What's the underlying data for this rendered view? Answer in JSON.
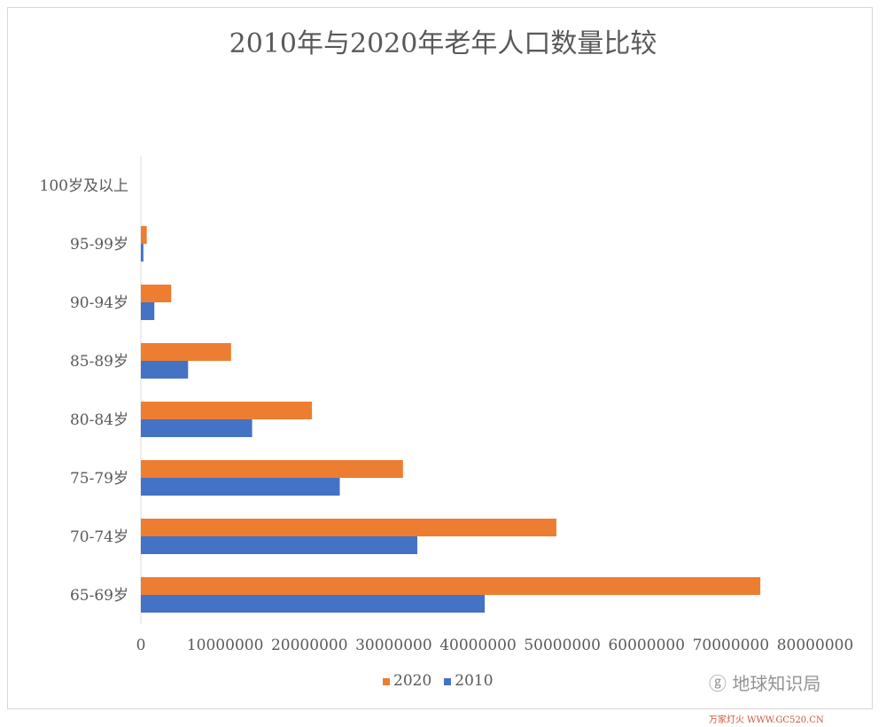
{
  "chart_data": {
    "type": "bar",
    "orientation": "horizontal",
    "title": "2010年与2020年老年人口数量比较",
    "categories": [
      "65-69岁",
      "70-74岁",
      "75-79岁",
      "80-84岁",
      "85-89岁",
      "90-94岁",
      "95-99岁",
      "100岁及以上"
    ],
    "series": [
      {
        "name": "2020",
        "color": "#ed7d31",
        "values": [
          73500000,
          49300000,
          31100000,
          20300000,
          10700000,
          3600000,
          700000,
          0
        ]
      },
      {
        "name": "2010",
        "color": "#4472c4",
        "values": [
          40800000,
          32800000,
          23600000,
          13200000,
          5600000,
          1600000,
          300000,
          0
        ]
      }
    ],
    "xlim": [
      0,
      80000000
    ],
    "xticks": [
      "0",
      "10000000",
      "20000000",
      "30000000",
      "40000000",
      "50000000",
      "60000000",
      "70000000",
      "80000000"
    ],
    "grid": false,
    "legend": "bottom",
    "legend_order": [
      "2020",
      "2010"
    ]
  },
  "watermark": {
    "text": "地球知识局",
    "site": "万家灯火 WWW.GC520.CN"
  }
}
